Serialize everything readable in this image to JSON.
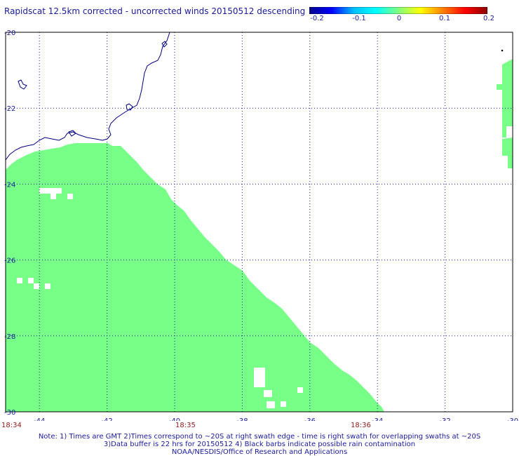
{
  "title": "Rapidscat 12.5km corrected - uncorrected winds 20150512 descending",
  "colorbar": {
    "ticks": [
      "-0.2",
      "-0.1",
      "0",
      "0.1",
      "0.2"
    ],
    "stops": [
      "#00008b",
      "#0000ff",
      "#00bfff",
      "#00ffff",
      "#7fff7f",
      "#ffff00",
      "#ff8000",
      "#ff0000",
      "#8b0000"
    ]
  },
  "map": {
    "lon_range": [
      -45,
      -30
    ],
    "lat_range": [
      -30,
      -20
    ],
    "x_ticks": [
      "-44",
      "-42",
      "-40",
      "-38",
      "-36",
      "-34",
      "-32",
      "-30"
    ],
    "y_ticks": [
      "-20",
      "-22",
      "-24",
      "-26",
      "-28",
      "-30"
    ],
    "swath_color": "#77ff88",
    "coast_color": "#000080",
    "grid_color": "#1a1a9a"
  },
  "times": [
    "18:34",
    "18:35",
    "18:36"
  ],
  "notes": [
    "Note: 1) Times are GMT 2)Times correspond to ~20S at right swath edge - time is right swath for overlapping swaths at ~20S",
    "3)Data buffer is 22 hrs for 20150512 4) Black barbs indicate possible rain contamination",
    "NOAA/NESDIS/Office of Research and Applications"
  ]
}
